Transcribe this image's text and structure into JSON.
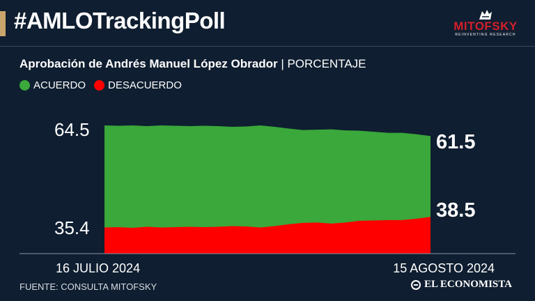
{
  "header": {
    "title": "#AMLOTrackingPoll",
    "logo_word": "MITOFSKY",
    "logo_tag": "REINVENTING RESEARCH"
  },
  "subtitle": {
    "main": "Aprobación de Andrés Manuel López Obrador",
    "separator": "|",
    "unit": "PORCENTAJE"
  },
  "legend": [
    {
      "label": "ACUERDO",
      "color": "#3aa83a"
    },
    {
      "label": "DESACUERDO",
      "color": "#ff0000"
    }
  ],
  "chart_data": {
    "type": "area",
    "title": "Aprobación de Andrés Manuel López Obrador",
    "ylabel": "PORCENTAJE",
    "ylim": [
      35.4,
      64.5
    ],
    "y_tick_labels": [
      "64.5",
      "35.4"
    ],
    "x_start_label": "16 JULIO 2024",
    "x_end_label": "15 AGOSTO 2024",
    "series": [
      {
        "name": "ACUERDO",
        "color": "#3aa83a",
        "values": [
          64.5,
          64.4,
          64.5,
          64.3,
          64.5,
          64.4,
          64.3,
          64.4,
          64.3,
          64.1,
          64.2,
          64.5,
          64.1,
          63.6,
          63.2,
          63.3,
          63.4,
          63.1,
          63.0,
          62.7,
          62.4,
          62.4,
          62.0,
          61.5
        ],
        "end_label": "61.5"
      },
      {
        "name": "DESACUERDO",
        "color": "#ff0000",
        "values": [
          35.5,
          35.6,
          35.4,
          35.7,
          35.5,
          35.6,
          35.7,
          35.6,
          35.7,
          35.9,
          35.8,
          35.5,
          35.9,
          36.4,
          36.8,
          36.9,
          36.6,
          36.9,
          37.4,
          37.5,
          37.6,
          37.6,
          38.0,
          38.5
        ],
        "end_label": "38.5"
      }
    ],
    "grid": false
  },
  "footer": {
    "source": "FUENTE: CONSULTA MITOFSKY",
    "brand": "EL ECONOMISTA"
  }
}
